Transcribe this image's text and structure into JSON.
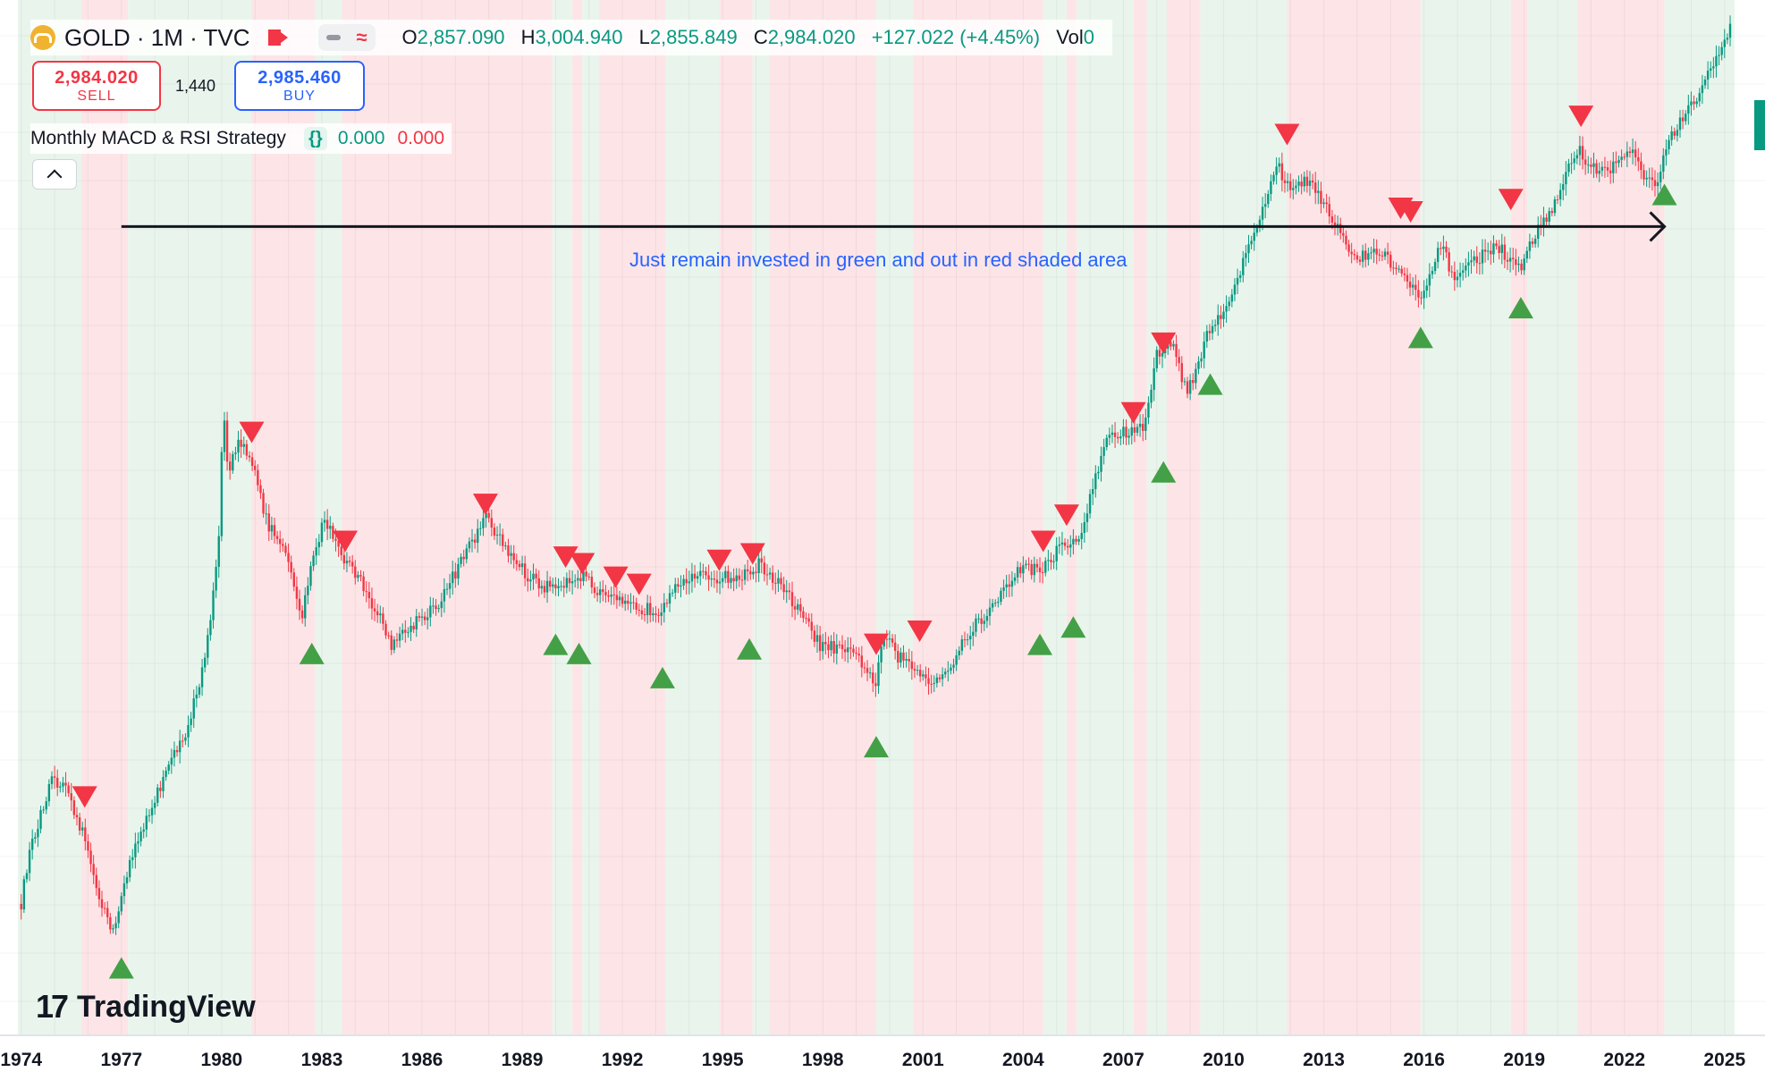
{
  "header": {
    "symbol_title": "GOLD · 1M · TVC",
    "ohlc": {
      "o_label": "O",
      "o_value": "2,857.090",
      "h_label": "H",
      "h_value": "3,004.940",
      "l_label": "L",
      "l_value": "2,855.849",
      "c_label": "C",
      "c_value": "2,984.020",
      "change": "+127.022 (+4.45%)",
      "vol_label": "Vol",
      "vol_value": "0"
    },
    "sell": {
      "price": "2,984.020",
      "label": "SELL"
    },
    "spread": "1,440",
    "buy": {
      "price": "2,985.460",
      "label": "BUY"
    },
    "indicator": {
      "name": "Monthly MACD & RSI Strategy",
      "value1": "0.000",
      "value2": "0.000"
    },
    "icons": [
      "gold-logo-icon",
      "flag-icon",
      "minus-icon",
      "wave-icon",
      "braces-icon",
      "chevron-up-icon"
    ]
  },
  "watermark": "TradingView",
  "colors": {
    "up": "#089981",
    "down": "#f23645",
    "green_zone": "#e9f5ec",
    "red_zone": "#fde5e7",
    "buy_marker": "#43a047",
    "sell_marker": "#f23645",
    "annotation": "#2962ff"
  },
  "chart_data": {
    "type": "candlestick",
    "title": "GOLD · 1M · TVC",
    "x_range": [
      1973.9,
      2025.3
    ],
    "y_range": [
      70,
      3300
    ],
    "y_scale": "log",
    "grid": true,
    "x_tick_labels": [
      "1974",
      "1977",
      "1980",
      "1983",
      "1986",
      "1989",
      "1992",
      "1995",
      "1998",
      "2001",
      "2004",
      "2007",
      "2010",
      "2013",
      "2016",
      "2019",
      "2022",
      "2025"
    ],
    "annotation": {
      "text": "Just remain invested in green and out in red shaded area",
      "arrow_y": 1420,
      "x_start": 1977.0,
      "x_end": 2023.2
    },
    "price_anchors": [
      [
        1973.9,
        105
      ],
      [
        1974.2,
        135
      ],
      [
        1974.9,
        180
      ],
      [
        1975.3,
        175
      ],
      [
        1975.9,
        145
      ],
      [
        1976.5,
        110
      ],
      [
        1976.75,
        104
      ],
      [
        1977.3,
        135
      ],
      [
        1978.1,
        175
      ],
      [
        1978.9,
        215
      ],
      [
        1979.5,
        280
      ],
      [
        1979.9,
        420
      ],
      [
        1980.05,
        720
      ],
      [
        1980.2,
        560
      ],
      [
        1980.5,
        650
      ],
      [
        1980.9,
        600
      ],
      [
        1981.3,
        480
      ],
      [
        1981.9,
        420
      ],
      [
        1982.4,
        330
      ],
      [
        1982.8,
        430
      ],
      [
        1983.1,
        480
      ],
      [
        1983.6,
        420
      ],
      [
        1984.3,
        370
      ],
      [
        1985.1,
        300
      ],
      [
        1985.9,
        330
      ],
      [
        1986.5,
        350
      ],
      [
        1987.3,
        420
      ],
      [
        1987.9,
        480
      ],
      [
        1988.5,
        430
      ],
      [
        1989.1,
        390
      ],
      [
        1989.7,
        370
      ],
      [
        1990.3,
        380
      ],
      [
        1990.8,
        390
      ],
      [
        1991.3,
        360
      ],
      [
        1992.2,
        345
      ],
      [
        1993.1,
        340
      ],
      [
        1993.6,
        380
      ],
      [
        1994.3,
        385
      ],
      [
        1995.0,
        385
      ],
      [
        1995.6,
        385
      ],
      [
        1996.1,
        405
      ],
      [
        1996.6,
        380
      ],
      [
        1997.2,
        345
      ],
      [
        1997.9,
        300
      ],
      [
        1998.4,
        295
      ],
      [
        1999.1,
        285
      ],
      [
        1999.6,
        258
      ],
      [
        1999.8,
        310
      ],
      [
        2000.3,
        285
      ],
      [
        2000.9,
        270
      ],
      [
        2001.3,
        262
      ],
      [
        2001.8,
        275
      ],
      [
        2002.4,
        315
      ],
      [
        2003.1,
        345
      ],
      [
        2003.9,
        400
      ],
      [
        2004.5,
        395
      ],
      [
        2005.1,
        430
      ],
      [
        2005.7,
        445
      ],
      [
        2006.1,
        540
      ],
      [
        2006.5,
        650
      ],
      [
        2007.1,
        660
      ],
      [
        2007.6,
        670
      ],
      [
        2008.0,
        880
      ],
      [
        2008.5,
        920
      ],
      [
        2008.9,
        760
      ],
      [
        2009.5,
        940
      ],
      [
        2010.2,
        1100
      ],
      [
        2010.9,
        1370
      ],
      [
        2011.6,
        1800
      ],
      [
        2011.9,
        1640
      ],
      [
        2012.6,
        1700
      ],
      [
        2013.3,
        1450
      ],
      [
        2013.9,
        1250
      ],
      [
        2014.6,
        1300
      ],
      [
        2015.3,
        1200
      ],
      [
        2015.9,
        1070
      ],
      [
        2016.5,
        1320
      ],
      [
        2016.9,
        1180
      ],
      [
        2017.5,
        1250
      ],
      [
        2018.2,
        1330
      ],
      [
        2018.8,
        1200
      ],
      [
        2019.4,
        1400
      ],
      [
        2019.8,
        1500
      ],
      [
        2020.6,
        1900
      ],
      [
        2021.2,
        1730
      ],
      [
        2021.8,
        1800
      ],
      [
        2022.2,
        1900
      ],
      [
        2022.6,
        1700
      ],
      [
        2022.9,
        1650
      ],
      [
        2023.4,
        1980
      ],
      [
        2024.2,
        2300
      ],
      [
        2024.8,
        2700
      ],
      [
        2025.2,
        2984
      ]
    ],
    "regimes": [
      {
        "start": 1973.9,
        "end": 1975.8,
        "zone": "green"
      },
      {
        "start": 1975.8,
        "end": 1977.2,
        "zone": "red"
      },
      {
        "start": 1977.2,
        "end": 1980.9,
        "zone": "green"
      },
      {
        "start": 1980.9,
        "end": 1982.8,
        "zone": "red"
      },
      {
        "start": 1982.8,
        "end": 1983.6,
        "zone": "green"
      },
      {
        "start": 1983.6,
        "end": 1989.9,
        "zone": "red"
      },
      {
        "start": 1989.9,
        "end": 1990.5,
        "zone": "green"
      },
      {
        "start": 1990.5,
        "end": 1990.8,
        "zone": "red"
      },
      {
        "start": 1990.8,
        "end": 1991.3,
        "zone": "green"
      },
      {
        "start": 1991.3,
        "end": 1993.3,
        "zone": "red"
      },
      {
        "start": 1993.3,
        "end": 1994.9,
        "zone": "green"
      },
      {
        "start": 1994.9,
        "end": 1995.9,
        "zone": "red"
      },
      {
        "start": 1995.9,
        "end": 1996.4,
        "zone": "green"
      },
      {
        "start": 1996.4,
        "end": 1999.6,
        "zone": "red"
      },
      {
        "start": 1999.6,
        "end": 2000.7,
        "zone": "green"
      },
      {
        "start": 2000.7,
        "end": 2004.6,
        "zone": "red"
      },
      {
        "start": 2004.6,
        "end": 2005.3,
        "zone": "green"
      },
      {
        "start": 2005.3,
        "end": 2005.6,
        "zone": "red"
      },
      {
        "start": 2005.6,
        "end": 2007.3,
        "zone": "green"
      },
      {
        "start": 2007.3,
        "end": 2007.7,
        "zone": "red"
      },
      {
        "start": 2007.7,
        "end": 2008.3,
        "zone": "green"
      },
      {
        "start": 2008.3,
        "end": 2009.3,
        "zone": "red"
      },
      {
        "start": 2009.3,
        "end": 2011.9,
        "zone": "green"
      },
      {
        "start": 2011.9,
        "end": 2015.9,
        "zone": "red"
      },
      {
        "start": 2015.9,
        "end": 2018.6,
        "zone": "green"
      },
      {
        "start": 2018.6,
        "end": 2019.1,
        "zone": "red"
      },
      {
        "start": 2019.1,
        "end": 2020.6,
        "zone": "green"
      },
      {
        "start": 2020.6,
        "end": 2023.2,
        "zone": "red"
      },
      {
        "start": 2023.2,
        "end": 2025.3,
        "zone": "green"
      }
    ],
    "sell_signals": [
      [
        1975.9,
        170
      ],
      [
        1980.9,
        660
      ],
      [
        1983.7,
        440
      ],
      [
        1987.9,
        505
      ],
      [
        1990.3,
        415
      ],
      [
        1990.8,
        405
      ],
      [
        1991.8,
        385
      ],
      [
        1992.5,
        375
      ],
      [
        1994.9,
        410
      ],
      [
        1995.9,
        420
      ],
      [
        1999.6,
        300
      ],
      [
        2000.9,
        315
      ],
      [
        2004.6,
        440
      ],
      [
        2005.3,
        485
      ],
      [
        2007.3,
        710
      ],
      [
        2008.2,
        920
      ],
      [
        2011.9,
        2000
      ],
      [
        2015.3,
        1520
      ],
      [
        2015.6,
        1500
      ],
      [
        2018.6,
        1570
      ],
      [
        2020.7,
        2140
      ]
    ],
    "buy_signals": [
      [
        1977.0,
        90
      ],
      [
        1982.7,
        290
      ],
      [
        1990.0,
        300
      ],
      [
        1990.7,
        290
      ],
      [
        1993.2,
        265
      ],
      [
        1995.8,
        295
      ],
      [
        1999.6,
        205
      ],
      [
        2004.5,
        300
      ],
      [
        2005.5,
        320
      ],
      [
        2008.2,
        570
      ],
      [
        2009.6,
        790
      ],
      [
        2015.9,
        940
      ],
      [
        2018.9,
        1050
      ],
      [
        2023.2,
        1600
      ]
    ]
  }
}
